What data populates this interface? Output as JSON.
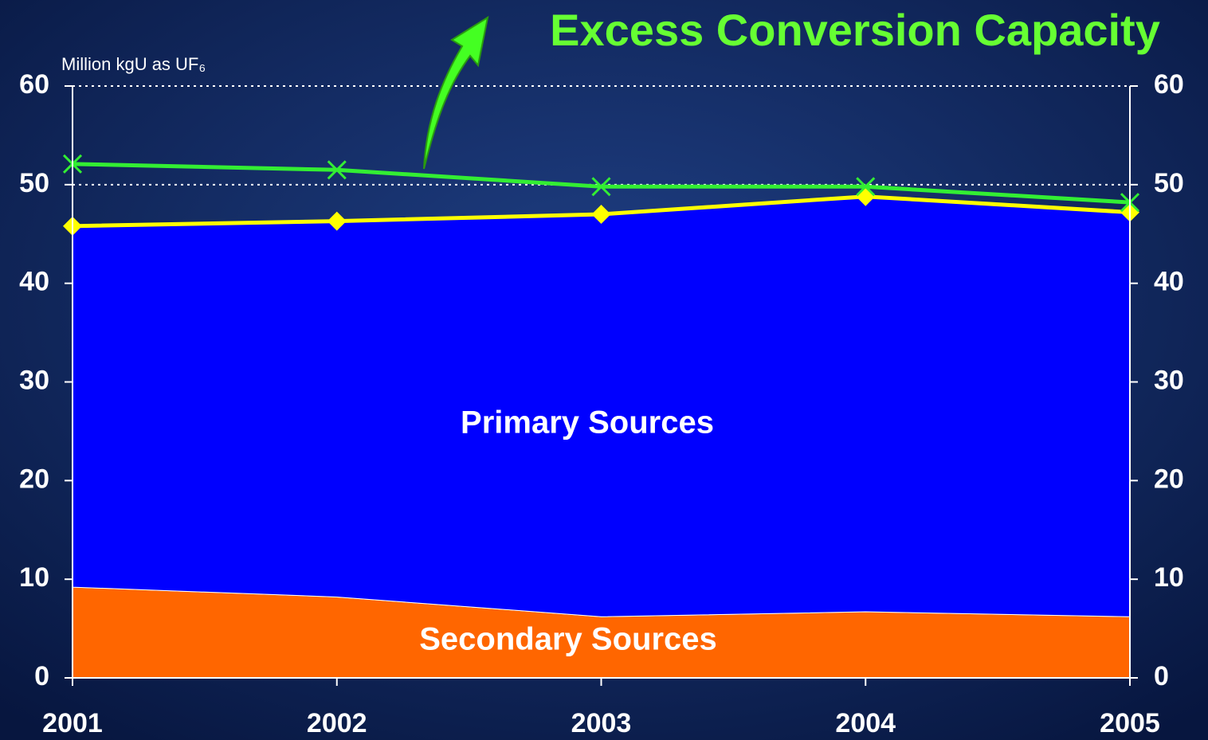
{
  "chart_data": {
    "type": "stacked_area_line",
    "annotation": "Excess Conversion Capacity",
    "y_label": "Million kgU as UF₆",
    "x": [
      2001,
      2002,
      2003,
      2004,
      2005
    ],
    "xlim": [
      2001,
      2005
    ],
    "xticks": [
      2001,
      2002,
      2003,
      2004,
      2005
    ],
    "ylim": [
      0,
      60
    ],
    "yticks": [
      0,
      10,
      20,
      30,
      40,
      50,
      60
    ],
    "y2lim": [
      0,
      60
    ],
    "y2ticks": [
      0,
      10,
      20,
      30,
      40,
      50,
      60
    ],
    "grid": true,
    "series": [
      {
        "name": "Secondary Sources",
        "kind": "area",
        "color": "#ff6600",
        "values": [
          9.2,
          8.2,
          6.2,
          6.7,
          6.2
        ]
      },
      {
        "name": "Primary Sources",
        "kind": "area",
        "color": "#0000ff",
        "values": [
          36.6,
          38.1,
          40.8,
          42.1,
          41.0
        ]
      },
      {
        "kind": "line",
        "marker": "diamond",
        "color": "#ffff00",
        "values": [
          45.8,
          46.3,
          47.0,
          48.8,
          47.2
        ]
      },
      {
        "kind": "line",
        "marker": "x",
        "color": "#33ee33",
        "values": [
          52.1,
          51.5,
          49.8,
          49.8,
          48.2
        ]
      }
    ]
  }
}
